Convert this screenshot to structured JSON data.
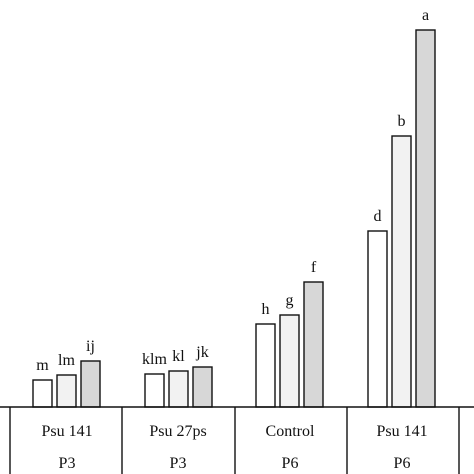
{
  "chart_data": {
    "type": "bar",
    "title": "",
    "xlabel": "",
    "ylabel": "",
    "categories": [
      {
        "name": "Psu 141",
        "sub": "P3"
      },
      {
        "name": "Psu 27ps",
        "sub": "P3"
      },
      {
        "name": "Control",
        "sub": "P6"
      },
      {
        "name": "Psu 141",
        "sub": "P6"
      }
    ],
    "series_colors": [
      "#ffffff",
      "#f2f2f2",
      "#d7d7d7"
    ],
    "groups": [
      {
        "values": [
          27,
          32,
          46
        ],
        "labels": [
          "m",
          "lm",
          "ij"
        ]
      },
      {
        "values": [
          33,
          36,
          40
        ],
        "labels": [
          "klm",
          "kl",
          "jk"
        ]
      },
      {
        "values": [
          83,
          92,
          125
        ],
        "labels": [
          "h",
          "g",
          "f"
        ]
      },
      {
        "values": [
          176,
          271,
          377
        ],
        "labels": [
          "d",
          "b",
          "a"
        ]
      }
    ],
    "ylim": [
      0,
      400
    ],
    "grid": false,
    "legend": "none"
  }
}
